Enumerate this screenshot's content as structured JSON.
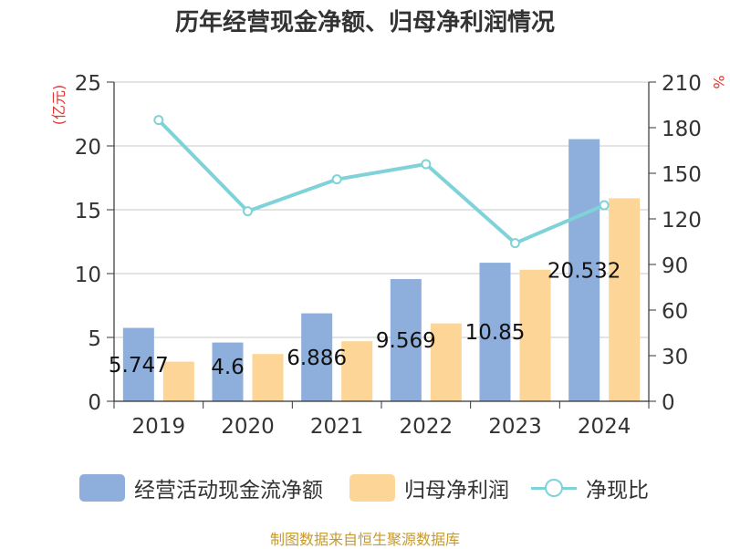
{
  "title": "历年经营现金净额、归母净利润情况",
  "source": "制图数据来自恒生聚源数据库",
  "colors": {
    "bar1": "#8eaedb",
    "bar2": "#fdd697",
    "line": "#7fd3d8",
    "left_unit": "#e0362f",
    "grid": "#c8c8c8",
    "text": "#333333",
    "source": "#c79a2b"
  },
  "chart_data": {
    "type": "bar",
    "title": "历年经营现金净额、归母净利润情况",
    "categories": [
      "2019",
      "2020",
      "2021",
      "2022",
      "2023",
      "2024"
    ],
    "ylabel_left": "(亿元)",
    "ylabel_right": "%",
    "ylim_left": [
      0,
      25
    ],
    "yticks_left": [
      "0",
      "5",
      "10",
      "15",
      "20",
      "25"
    ],
    "ylim_right": [
      0,
      210
    ],
    "yticks_right": [
      "0",
      "30",
      "60",
      "90",
      "120",
      "150",
      "180",
      "210"
    ],
    "grid": true,
    "legend_position": "bottom",
    "series": [
      {
        "name": "经营活动现金流净额",
        "type": "bar",
        "axis": "left",
        "values": [
          5.747,
          4.6,
          6.886,
          9.569,
          10.85,
          20.532
        ],
        "labels": [
          "5.747",
          "4.6",
          "6.886",
          "9.569",
          "10.85",
          "20.532"
        ]
      },
      {
        "name": "归母净利润",
        "type": "bar",
        "axis": "left",
        "values": [
          3.1,
          3.7,
          4.7,
          6.1,
          10.3,
          15.9
        ]
      },
      {
        "name": "净现比",
        "type": "line",
        "axis": "right",
        "values": [
          185,
          125,
          146,
          156,
          104,
          129
        ]
      }
    ]
  }
}
